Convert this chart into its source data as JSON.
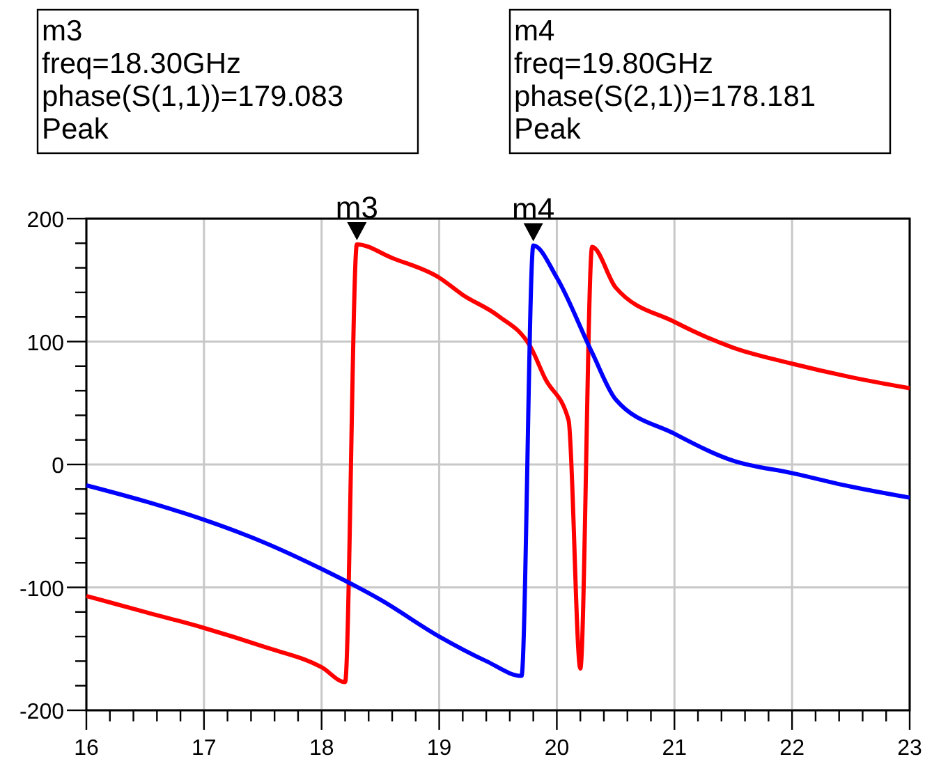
{
  "chart_data": {
    "type": "line",
    "xlim": [
      16,
      23
    ],
    "ylim": [
      -200,
      200
    ],
    "xticks": [
      16,
      {
        "value": 16.2,
        "label": null
      },
      {
        "value": 16.4,
        "label": null
      },
      {
        "value": 16.6,
        "label": null
      },
      {
        "value": 16.8,
        "label": null
      },
      17,
      {
        "value": 17.2,
        "label": null
      },
      {
        "value": 17.4,
        "label": null
      },
      {
        "value": 17.6,
        "label": null
      },
      {
        "value": 17.8,
        "label": null
      },
      18,
      {
        "value": 18.2,
        "label": null
      },
      {
        "value": 18.4,
        "label": null
      },
      {
        "value": 18.6,
        "label": null
      },
      {
        "value": 18.8,
        "label": null
      },
      19,
      {
        "value": 19.2,
        "label": null
      },
      {
        "value": 19.4,
        "label": null
      },
      {
        "value": 19.6,
        "label": null
      },
      {
        "value": 19.8,
        "label": null
      },
      20,
      {
        "value": 20.2,
        "label": null
      },
      {
        "value": 20.4,
        "label": null
      },
      {
        "value": 20.6,
        "label": null
      },
      {
        "value": 20.8,
        "label": null
      },
      21,
      {
        "value": 21.2,
        "label": null
      },
      {
        "value": 21.4,
        "label": null
      },
      {
        "value": 21.6,
        "label": null
      },
      {
        "value": 21.8,
        "label": null
      },
      22,
      {
        "value": 22.2,
        "label": null
      },
      {
        "value": 22.4,
        "label": null
      },
      {
        "value": 22.6,
        "label": null
      },
      {
        "value": 22.8,
        "label": null
      },
      23
    ],
    "yticks": [
      -200,
      {
        "value": -180,
        "label": null
      },
      {
        "value": -160,
        "label": null
      },
      {
        "value": -140,
        "label": null
      },
      {
        "value": -120,
        "label": null
      },
      -100,
      {
        "value": -80,
        "label": null
      },
      {
        "value": -60,
        "label": null
      },
      {
        "value": -40,
        "label": null
      },
      {
        "value": -20,
        "label": null
      },
      0,
      {
        "value": 20,
        "label": null
      },
      {
        "value": 40,
        "label": null
      },
      {
        "value": 60,
        "label": null
      },
      {
        "value": 80,
        "label": null
      },
      100,
      {
        "value": 120,
        "label": null
      },
      {
        "value": 140,
        "label": null
      },
      {
        "value": 160,
        "label": null
      },
      {
        "value": 180,
        "label": null
      },
      200
    ],
    "grid": true,
    "marker": "none",
    "line_style": "solid",
    "series": [
      {
        "color": "#ff0000",
        "x": [
          16,
          16.5,
          17,
          17.5,
          18,
          18.2,
          18.3,
          18.6,
          19,
          19.2,
          19.5,
          19.78,
          19.9,
          20.1,
          20.2,
          20.3,
          20.5,
          21,
          21.5,
          22,
          22.5,
          23
        ],
        "values": [
          -107,
          -120,
          -133,
          -148,
          -165,
          -177,
          179.083,
          168,
          152,
          138,
          121,
          95,
          70,
          36,
          -166,
          177,
          144,
          116,
          95,
          82,
          71,
          62
        ]
      },
      {
        "color": "#0000ff",
        "x": [
          16,
          16.5,
          17,
          17.5,
          18,
          18.5,
          19,
          19.4,
          19.7,
          19.8,
          20,
          20.3,
          20.5,
          21,
          21.5,
          22,
          22.5,
          23
        ],
        "values": [
          -17,
          -30,
          -45,
          -63,
          -85,
          -110,
          -140,
          -160,
          -172,
          178.181,
          152,
          91,
          53,
          25,
          3,
          -7,
          -18,
          -27
        ]
      }
    ],
    "annotations": [
      {
        "text": "m3",
        "x": 18.3,
        "y": 179.083
      },
      {
        "text": "m4",
        "x": 19.8,
        "y": 178.181
      },
      "m3\nfreq=18.30GHz\nphase(S(1,1))=179.083\nPeak",
      "m4\nfreq=19.80GHz\nphase(S(2,1))=178.181\nPeak"
    ]
  }
}
